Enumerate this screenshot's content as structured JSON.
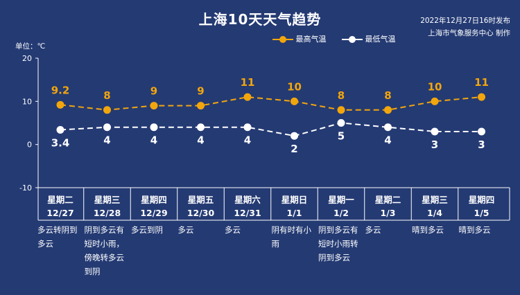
{
  "title": "上海10天天气趋势",
  "publish_date": "2022年12月27日16时发布",
  "publisher": "上海市气象服务中心 制作",
  "unit_label": "单位：℃",
  "colors": {
    "background": "#243a73",
    "high": "#f2a60d",
    "low": "#ffffff"
  },
  "chart_data": {
    "type": "line",
    "title": "上海10天天气趋势",
    "ylabel": "单位：℃",
    "ylim": [
      -10,
      20
    ],
    "yticks": [
      "20",
      "10",
      "0",
      "-10"
    ],
    "categories": [
      "星期二 12/27",
      "星期三 12/28",
      "星期四 12/29",
      "星期五 12/30",
      "星期六 12/31",
      "星期日 1/1",
      "星期一 1/2",
      "星期二 1/3",
      "星期三 1/4",
      "星期四 1/5"
    ],
    "weekdays": [
      "星期二",
      "星期三",
      "星期四",
      "星期五",
      "星期六",
      "星期日",
      "星期一",
      "星期二",
      "星期三",
      "星期四"
    ],
    "dates": [
      "12/27",
      "12/28",
      "12/29",
      "12/30",
      "12/31",
      "1/1",
      "1/2",
      "1/3",
      "1/4",
      "1/5"
    ],
    "series": [
      {
        "name": "最高气温",
        "values": [
          9.2,
          8,
          9,
          9,
          11,
          10,
          8,
          8,
          10,
          11
        ],
        "labels": [
          "9.2",
          "8",
          "9",
          "9",
          "11",
          "10",
          "8",
          "8",
          "10",
          "11"
        ]
      },
      {
        "name": "最低气温",
        "values": [
          3.4,
          4,
          4,
          4,
          4,
          2,
          5,
          4,
          3,
          3
        ],
        "labels": [
          "3.4",
          "4",
          "4",
          "4",
          "4",
          "2",
          "5",
          "4",
          "3",
          "3"
        ]
      }
    ],
    "legend_position": "top-right",
    "grid": false
  },
  "descriptions": [
    "多云转阴到多云",
    "阴到多云有短时小雨，傍晚转多云到阴",
    "多云到阴",
    "多云",
    "多云",
    "阴有时有小雨",
    "阴到多云有短时小雨转阴到多云",
    "多云",
    "晴到多云",
    "晴到多云"
  ]
}
